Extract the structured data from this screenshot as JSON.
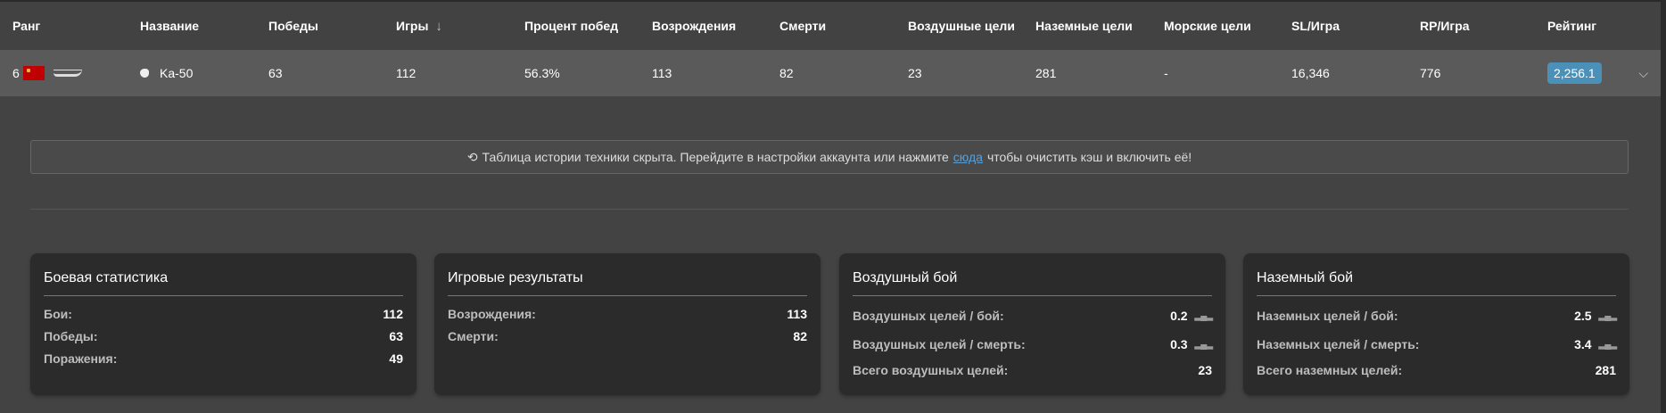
{
  "table": {
    "headers": [
      "Ранг",
      "Название",
      "Победы",
      "Игры",
      "Процент побед",
      "Возрождения",
      "Смерти",
      "Воздушные цели",
      "Наземные цели",
      "Морские цели",
      "SL/Игра",
      "RP/Игра",
      "Рейтинг"
    ],
    "sort_column": "Игры",
    "sort_direction": "descending",
    "row": {
      "rank": "6",
      "country": "USSR",
      "vehicle_type": "helicopter",
      "name": "Ka-50",
      "wins": "63",
      "games": "112",
      "win_rate": "56.3%",
      "respawns": "113",
      "deaths": "82",
      "air_targets": "23",
      "ground_targets": "281",
      "naval_targets": "-",
      "sl_per_game": "16,346",
      "rp_per_game": "776",
      "rating": "2,256.1"
    },
    "rating_color": "#4a90b8"
  },
  "banner": {
    "icon": "history-icon",
    "text_before": "Таблица истории техники скрыта. Перейдите в настройки аккаунта или нажмите",
    "link": "сюда",
    "text_after": "чтобы очистить кэш и включить её!"
  },
  "cards": [
    {
      "title": "Боевая статистика",
      "rows": [
        {
          "label": "Бои:",
          "value": "112"
        },
        {
          "label": "Победы:",
          "value": "63"
        },
        {
          "label": "Поражения:",
          "value": "49"
        }
      ]
    },
    {
      "title": "Игровые результаты",
      "rows": [
        {
          "label": "Возрождения:",
          "value": "113"
        },
        {
          "label": "Смерти:",
          "value": "82"
        }
      ]
    },
    {
      "title": "Воздушный бой",
      "rows": [
        {
          "label": "Воздушных целей / бой:",
          "value": "0.2"
        },
        {
          "label": "Воздушных целей / смерть:",
          "value": "0.3"
        },
        {
          "label": "Всего воздушных целей:",
          "value": "23"
        }
      ]
    },
    {
      "title": "Наземный бой",
      "rows": [
        {
          "label": "Наземных целей / бой:",
          "value": "2.5"
        },
        {
          "label": "Наземных целей / смерть:",
          "value": "3.4"
        },
        {
          "label": "Всего наземных целей:",
          "value": "281"
        }
      ]
    }
  ]
}
